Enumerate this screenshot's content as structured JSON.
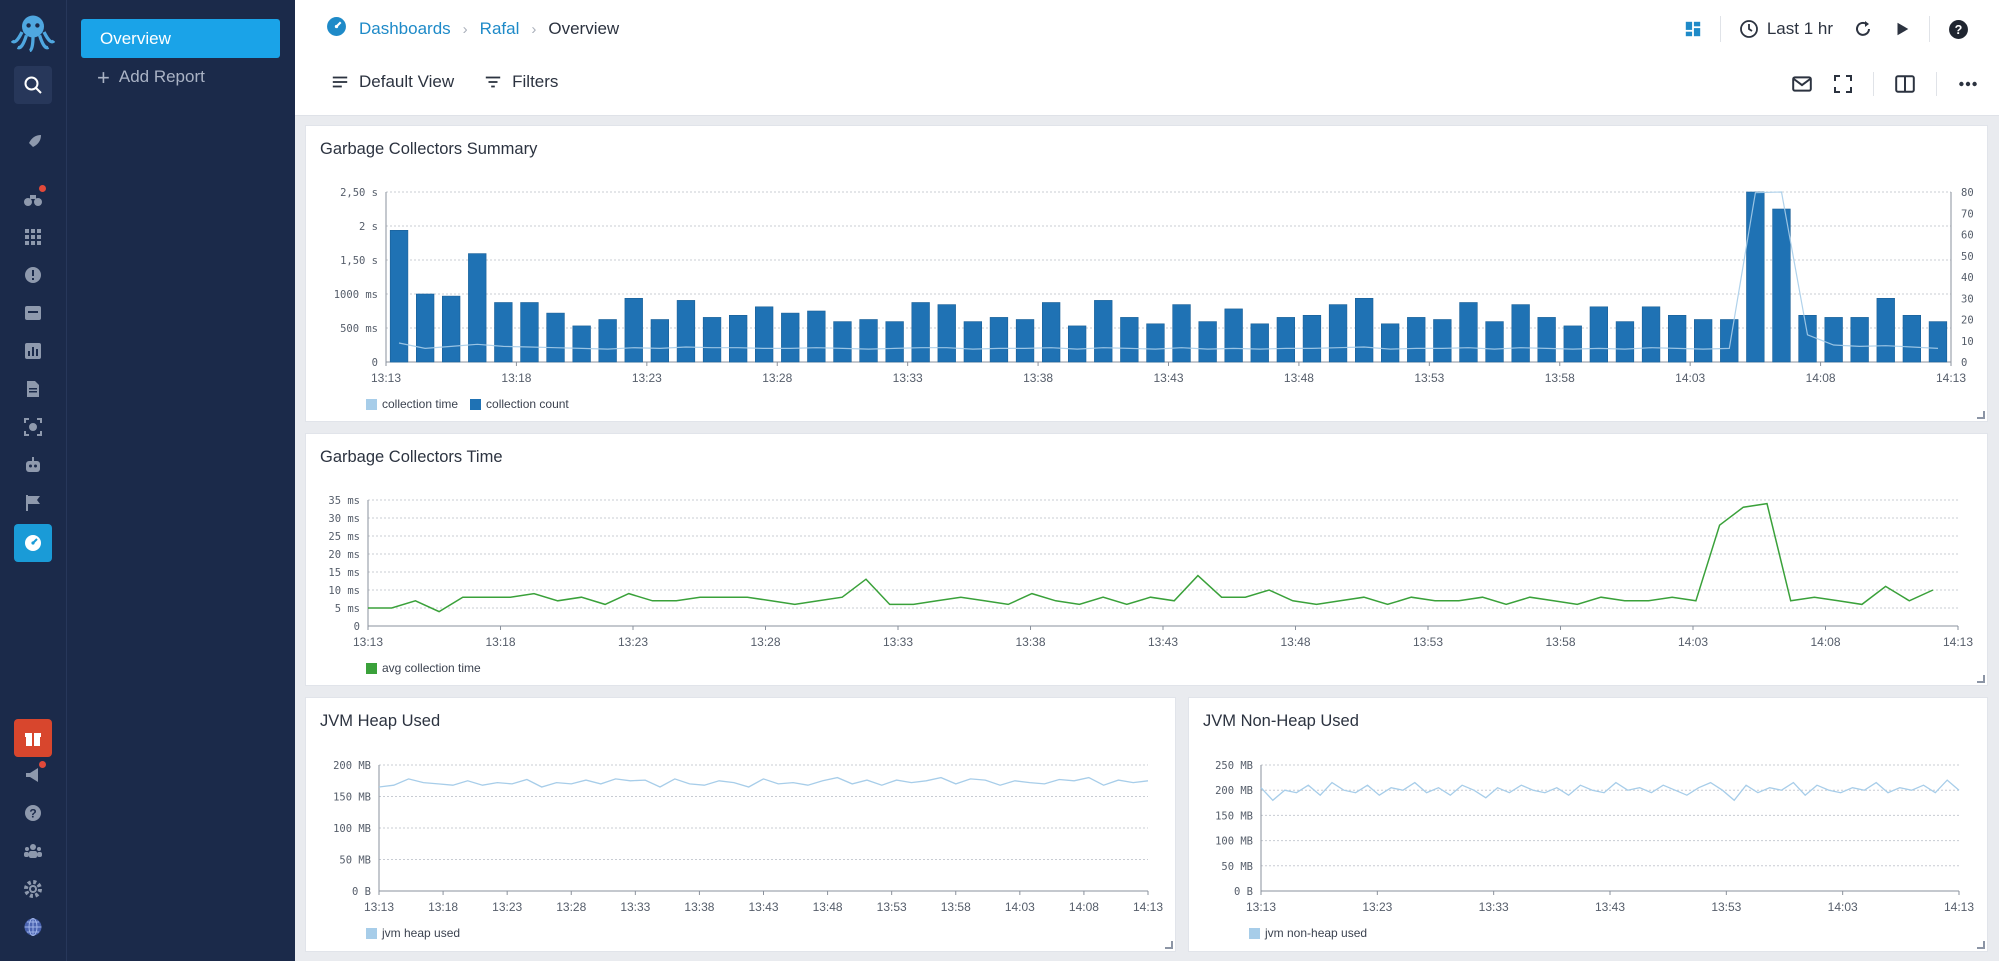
{
  "colors": {
    "rail_bg": "#1b2a4a",
    "accent": "#1aa3e8",
    "bar": "#1f72b4",
    "line_light": "#a7cde9",
    "line_green": "#3aa13a"
  },
  "rail": {
    "items": [
      {
        "name": "octopus-logo-icon"
      },
      {
        "name": "search-icon"
      },
      {
        "name": "rocket-icon"
      },
      {
        "name": "binoculars-icon"
      },
      {
        "name": "apps-grid-icon"
      },
      {
        "name": "alert-icon"
      },
      {
        "name": "inbox-icon"
      },
      {
        "name": "bar-chart-icon"
      },
      {
        "name": "document-icon"
      },
      {
        "name": "scan-icon"
      },
      {
        "name": "robot-icon"
      },
      {
        "name": "flag-icon"
      },
      {
        "name": "dashboard-gauge-icon"
      },
      {
        "name": "gift-icon"
      },
      {
        "name": "megaphone-icon"
      },
      {
        "name": "help-icon"
      },
      {
        "name": "team-icon"
      },
      {
        "name": "settings-icon"
      },
      {
        "name": "globe-icon"
      }
    ]
  },
  "reports": {
    "active": "Overview",
    "add_label": "Add Report"
  },
  "header": {
    "breadcrumb": [
      "Dashboards",
      "Rafal",
      "Overview"
    ],
    "time_range": "Last 1 hr",
    "default_view": "Default View",
    "filters": "Filters"
  },
  "panels": {
    "gc_summary": {
      "title": "Garbage Collectors Summary",
      "legend": [
        "collection time",
        "collection count"
      ]
    },
    "gc_time": {
      "title": "Garbage Collectors Time",
      "legend": [
        "avg collection time"
      ]
    },
    "heap": {
      "title": "JVM Heap Used",
      "legend": [
        "jvm heap used"
      ]
    },
    "nonheap": {
      "title": "JVM Non-Heap Used",
      "legend": [
        "jvm non-heap used"
      ]
    }
  },
  "chart_data": [
    {
      "type": "bar",
      "title": "Garbage Collectors Summary",
      "x_ticks": [
        "13:13",
        "13:18",
        "13:23",
        "13:28",
        "13:33",
        "13:38",
        "13:43",
        "13:48",
        "13:53",
        "13:58",
        "14:03",
        "14:08",
        "14:13"
      ],
      "y_left_ticks": [
        "0",
        "500 ms",
        "1000 ms",
        "1,50 s",
        "2 s",
        "2,50 s"
      ],
      "y_right_ticks": [
        "0",
        "10",
        "20",
        "30",
        "40",
        "50",
        "60",
        "70",
        "80"
      ],
      "ylim_right": [
        0,
        80
      ],
      "series": [
        {
          "name": "collection count",
          "axis": "right",
          "values": [
            62,
            32,
            31,
            51,
            28,
            28,
            23,
            17,
            20,
            30,
            20,
            29,
            21,
            22,
            26,
            23,
            24,
            19,
            20,
            19,
            28,
            27,
            19,
            21,
            20,
            28,
            17,
            29,
            21,
            18,
            27,
            19,
            25,
            18,
            21,
            22,
            27,
            30,
            18,
            21,
            20,
            28,
            19,
            27,
            21,
            17,
            26,
            19,
            26,
            22,
            20,
            20,
            80,
            72,
            22,
            21,
            21,
            30,
            22,
            19
          ]
        },
        {
          "name": "collection time",
          "axis": "left",
          "values": [
            280,
            200,
            230,
            260,
            230,
            220,
            210,
            200,
            190,
            210,
            200,
            220,
            210,
            210,
            200,
            200,
            210,
            200,
            190,
            200,
            210,
            210,
            190,
            200,
            200,
            210,
            190,
            210,
            200,
            190,
            210,
            190,
            200,
            190,
            200,
            200,
            210,
            220,
            190,
            200,
            200,
            210,
            190,
            210,
            200,
            190,
            200,
            190,
            210,
            200,
            190,
            200,
            2490,
            2500,
            400,
            250,
            230,
            240,
            220,
            200
          ]
        }
      ]
    },
    {
      "type": "line",
      "title": "Garbage Collectors Time",
      "x_ticks": [
        "13:13",
        "13:18",
        "13:23",
        "13:28",
        "13:33",
        "13:38",
        "13:43",
        "13:48",
        "13:53",
        "13:58",
        "14:03",
        "14:08",
        "14:13"
      ],
      "y_ticks": [
        "0",
        "5 ms",
        "10 ms",
        "15 ms",
        "20 ms",
        "25 ms",
        "30 ms",
        "35 ms"
      ],
      "ylim": [
        0,
        35
      ],
      "series": [
        {
          "name": "avg collection time",
          "values": [
            5,
            5,
            7,
            4,
            8,
            8,
            8,
            9,
            7,
            8,
            6,
            9,
            7,
            7,
            8,
            8,
            8,
            7,
            6,
            7,
            8,
            13,
            6,
            6,
            7,
            8,
            7,
            6,
            9,
            7,
            6,
            8,
            6,
            8,
            7,
            14,
            8,
            8,
            10,
            7,
            6,
            7,
            8,
            6,
            8,
            7,
            7,
            8,
            6,
            8,
            7,
            6,
            8,
            7,
            7,
            8,
            7,
            28,
            33,
            34,
            7,
            8,
            7,
            6,
            11,
            7,
            10
          ]
        }
      ]
    },
    {
      "type": "line",
      "title": "JVM Heap Used",
      "x_ticks": [
        "13:13",
        "13:18",
        "13:23",
        "13:28",
        "13:33",
        "13:38",
        "13:43",
        "13:48",
        "13:53",
        "13:58",
        "14:03",
        "14:08",
        "14:13"
      ],
      "y_ticks": [
        "0 B",
        "50 MB",
        "100 MB",
        "150 MB",
        "200 MB"
      ],
      "ylim": [
        0,
        200
      ],
      "series": [
        {
          "name": "jvm heap used",
          "values": [
            165,
            168,
            178,
            172,
            170,
            168,
            175,
            168,
            172,
            170,
            177,
            165,
            172,
            170,
            176,
            170,
            178,
            175,
            176,
            165,
            178,
            170,
            168,
            175,
            172,
            165,
            178,
            170,
            172,
            168,
            175,
            180,
            170,
            176,
            168,
            176,
            172,
            175,
            180,
            170,
            178,
            176,
            168,
            175,
            172,
            170,
            177,
            175,
            180,
            168,
            176,
            172,
            175
          ]
        }
      ]
    },
    {
      "type": "line",
      "title": "JVM Non-Heap Used",
      "x_ticks": [
        "13:13",
        "13:23",
        "13:33",
        "13:43",
        "13:53",
        "14:03",
        "14:13"
      ],
      "y_ticks": [
        "0 B",
        "50 MB",
        "100 MB",
        "150 MB",
        "200 MB",
        "250 MB"
      ],
      "ylim": [
        0,
        250
      ],
      "series": [
        {
          "name": "jvm non-heap used",
          "values": [
            205,
            180,
            200,
            195,
            210,
            190,
            215,
            200,
            195,
            210,
            190,
            205,
            200,
            215,
            195,
            205,
            190,
            210,
            200,
            185,
            205,
            195,
            210,
            200,
            195,
            205,
            190,
            210,
            200,
            195,
            215,
            200,
            205,
            195,
            210,
            200,
            190,
            205,
            215,
            200,
            180,
            210,
            195,
            205,
            200,
            215,
            190,
            210,
            200,
            195,
            205,
            200,
            215,
            195,
            205,
            200,
            210,
            195,
            220,
            200
          ]
        }
      ]
    }
  ]
}
